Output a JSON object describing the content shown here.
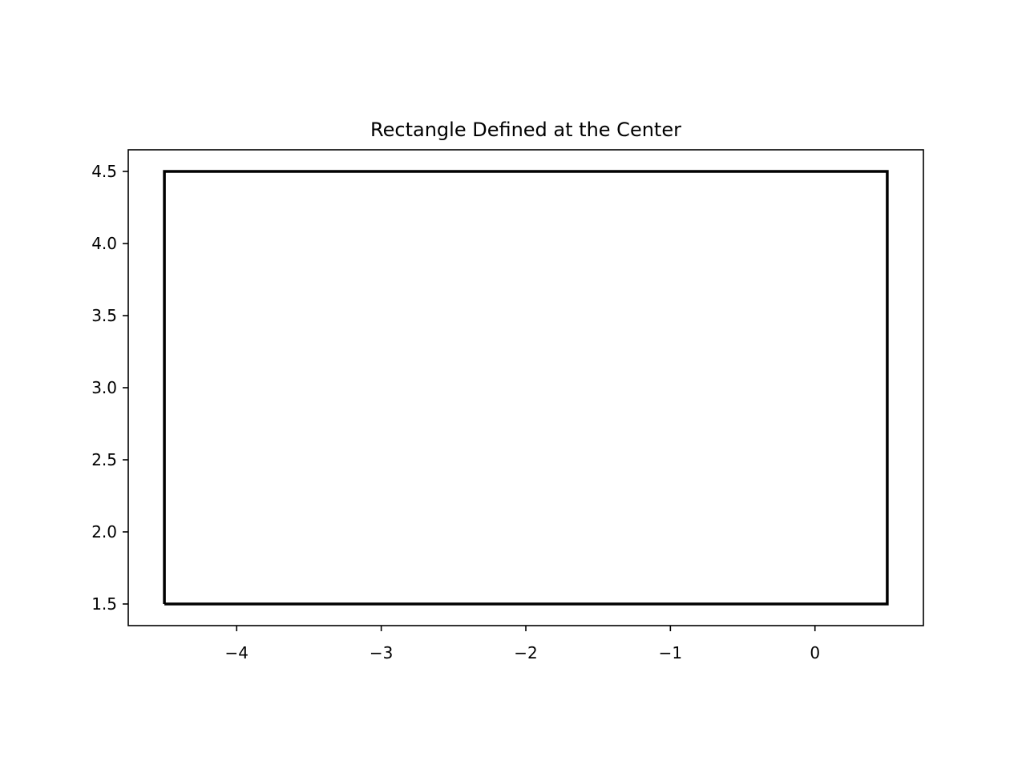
{
  "chart_data": {
    "type": "line",
    "title": "Rectangle Defined at the Center",
    "xlabel": "",
    "ylabel": "",
    "xlim": [
      -4.75,
      0.75
    ],
    "ylim": [
      1.35,
      4.65
    ],
    "x_ticks": [
      -4,
      -3,
      -2,
      -1,
      0
    ],
    "x_tick_labels": [
      "−4",
      "−3",
      "−2",
      "−1",
      "0"
    ],
    "y_ticks": [
      1.5,
      2.0,
      2.5,
      3.0,
      3.5,
      4.0,
      4.5
    ],
    "y_tick_labels": [
      "1.5",
      "2.0",
      "2.5",
      "3.0",
      "3.5",
      "4.0",
      "4.5"
    ],
    "grid": false,
    "series": [
      {
        "shape": "rectangle",
        "color": "#000000",
        "x": [
          -4.5,
          0.5,
          0.5,
          -4.5,
          -4.5
        ],
        "y": [
          1.5,
          1.5,
          4.5,
          4.5,
          1.5
        ]
      }
    ]
  }
}
